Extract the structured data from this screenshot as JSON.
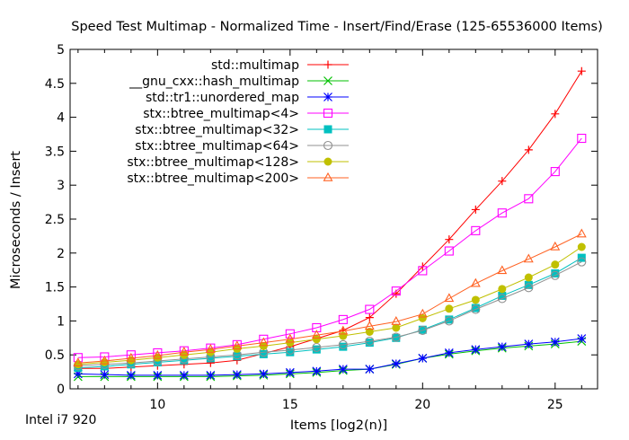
{
  "chart_data": {
    "type": "line",
    "title": "Speed Test Multimap - Normalized Time - Insert/Find/Erase (125-65536000 Items)",
    "xlabel": "Items [log2(n)]",
    "ylabel": "Microseconds / Insert",
    "footnote": "Intel i7 920",
    "xlim": [
      6.7,
      26.6
    ],
    "ylim": [
      0,
      5
    ],
    "xticks": [
      10,
      15,
      20,
      25
    ],
    "yticks": [
      0,
      0.5,
      1,
      1.5,
      2,
      2.5,
      3,
      3.5,
      4,
      4.5,
      5
    ],
    "ytick_labels": [
      "0",
      "0.5",
      "1",
      "1.5",
      "2",
      "2.5",
      "3",
      "3.5",
      "4",
      "4.5",
      "5"
    ],
    "legend_position": "top-left",
    "x": [
      7,
      8,
      9,
      10,
      11,
      12,
      13,
      14,
      15,
      16,
      17,
      18,
      19,
      20,
      21,
      22,
      23,
      24,
      25,
      26
    ],
    "series": [
      {
        "name": "std::multimap",
        "color": "#ff0000",
        "marker": "plus",
        "values": [
          0.3,
          0.3,
          0.32,
          0.34,
          0.36,
          0.38,
          0.42,
          0.52,
          0.62,
          0.74,
          0.86,
          1.05,
          1.4,
          1.8,
          2.2,
          2.64,
          3.06,
          3.52,
          4.05,
          4.68
        ]
      },
      {
        "name": "__gnu_cxx::hash_multimap",
        "color": "#00c000",
        "marker": "cross",
        "values": [
          0.18,
          0.18,
          0.18,
          0.18,
          0.18,
          0.18,
          0.19,
          0.2,
          0.22,
          0.24,
          0.27,
          0.29,
          0.36,
          0.45,
          0.51,
          0.56,
          0.6,
          0.63,
          0.66,
          0.7
        ]
      },
      {
        "name": "std::tr1::unordered_map",
        "color": "#0000ff",
        "marker": "star",
        "values": [
          0.22,
          0.21,
          0.2,
          0.2,
          0.2,
          0.2,
          0.21,
          0.22,
          0.24,
          0.26,
          0.29,
          0.29,
          0.37,
          0.45,
          0.53,
          0.58,
          0.62,
          0.66,
          0.69,
          0.74
        ]
      },
      {
        "name": "stx::btree_multimap<4>",
        "color": "#ff00ff",
        "marker": "square",
        "values": [
          0.46,
          0.47,
          0.5,
          0.53,
          0.56,
          0.6,
          0.65,
          0.73,
          0.81,
          0.9,
          1.02,
          1.17,
          1.44,
          1.74,
          2.03,
          2.33,
          2.59,
          2.8,
          3.2,
          3.69
        ]
      },
      {
        "name": "stx::btree_multimap<32>",
        "color": "#00c0c0",
        "marker": "filled-square",
        "values": [
          0.31,
          0.33,
          0.36,
          0.39,
          0.42,
          0.45,
          0.48,
          0.51,
          0.54,
          0.58,
          0.62,
          0.68,
          0.75,
          0.87,
          1.02,
          1.19,
          1.37,
          1.53,
          1.7,
          1.93
        ]
      },
      {
        "name": "stx::btree_multimap<64>",
        "color": "#909090",
        "marker": "circle",
        "values": [
          0.34,
          0.36,
          0.38,
          0.41,
          0.44,
          0.47,
          0.5,
          0.54,
          0.57,
          0.61,
          0.65,
          0.7,
          0.76,
          0.86,
          1.0,
          1.17,
          1.33,
          1.49,
          1.67,
          1.87
        ]
      },
      {
        "name": "stx::btree_multimap<128>",
        "color": "#c0c000",
        "marker": "filled-circle",
        "values": [
          0.36,
          0.39,
          0.42,
          0.46,
          0.5,
          0.54,
          0.59,
          0.63,
          0.68,
          0.73,
          0.78,
          0.84,
          0.9,
          1.04,
          1.18,
          1.31,
          1.47,
          1.64,
          1.83,
          2.09
        ]
      },
      {
        "name": "stx::btree_multimap<200>",
        "color": "#ff6020",
        "marker": "triangle",
        "values": [
          0.38,
          0.41,
          0.45,
          0.49,
          0.54,
          0.58,
          0.63,
          0.68,
          0.73,
          0.79,
          0.85,
          0.92,
          0.99,
          1.1,
          1.33,
          1.55,
          1.74,
          1.91,
          2.09,
          2.28
        ]
      }
    ]
  }
}
